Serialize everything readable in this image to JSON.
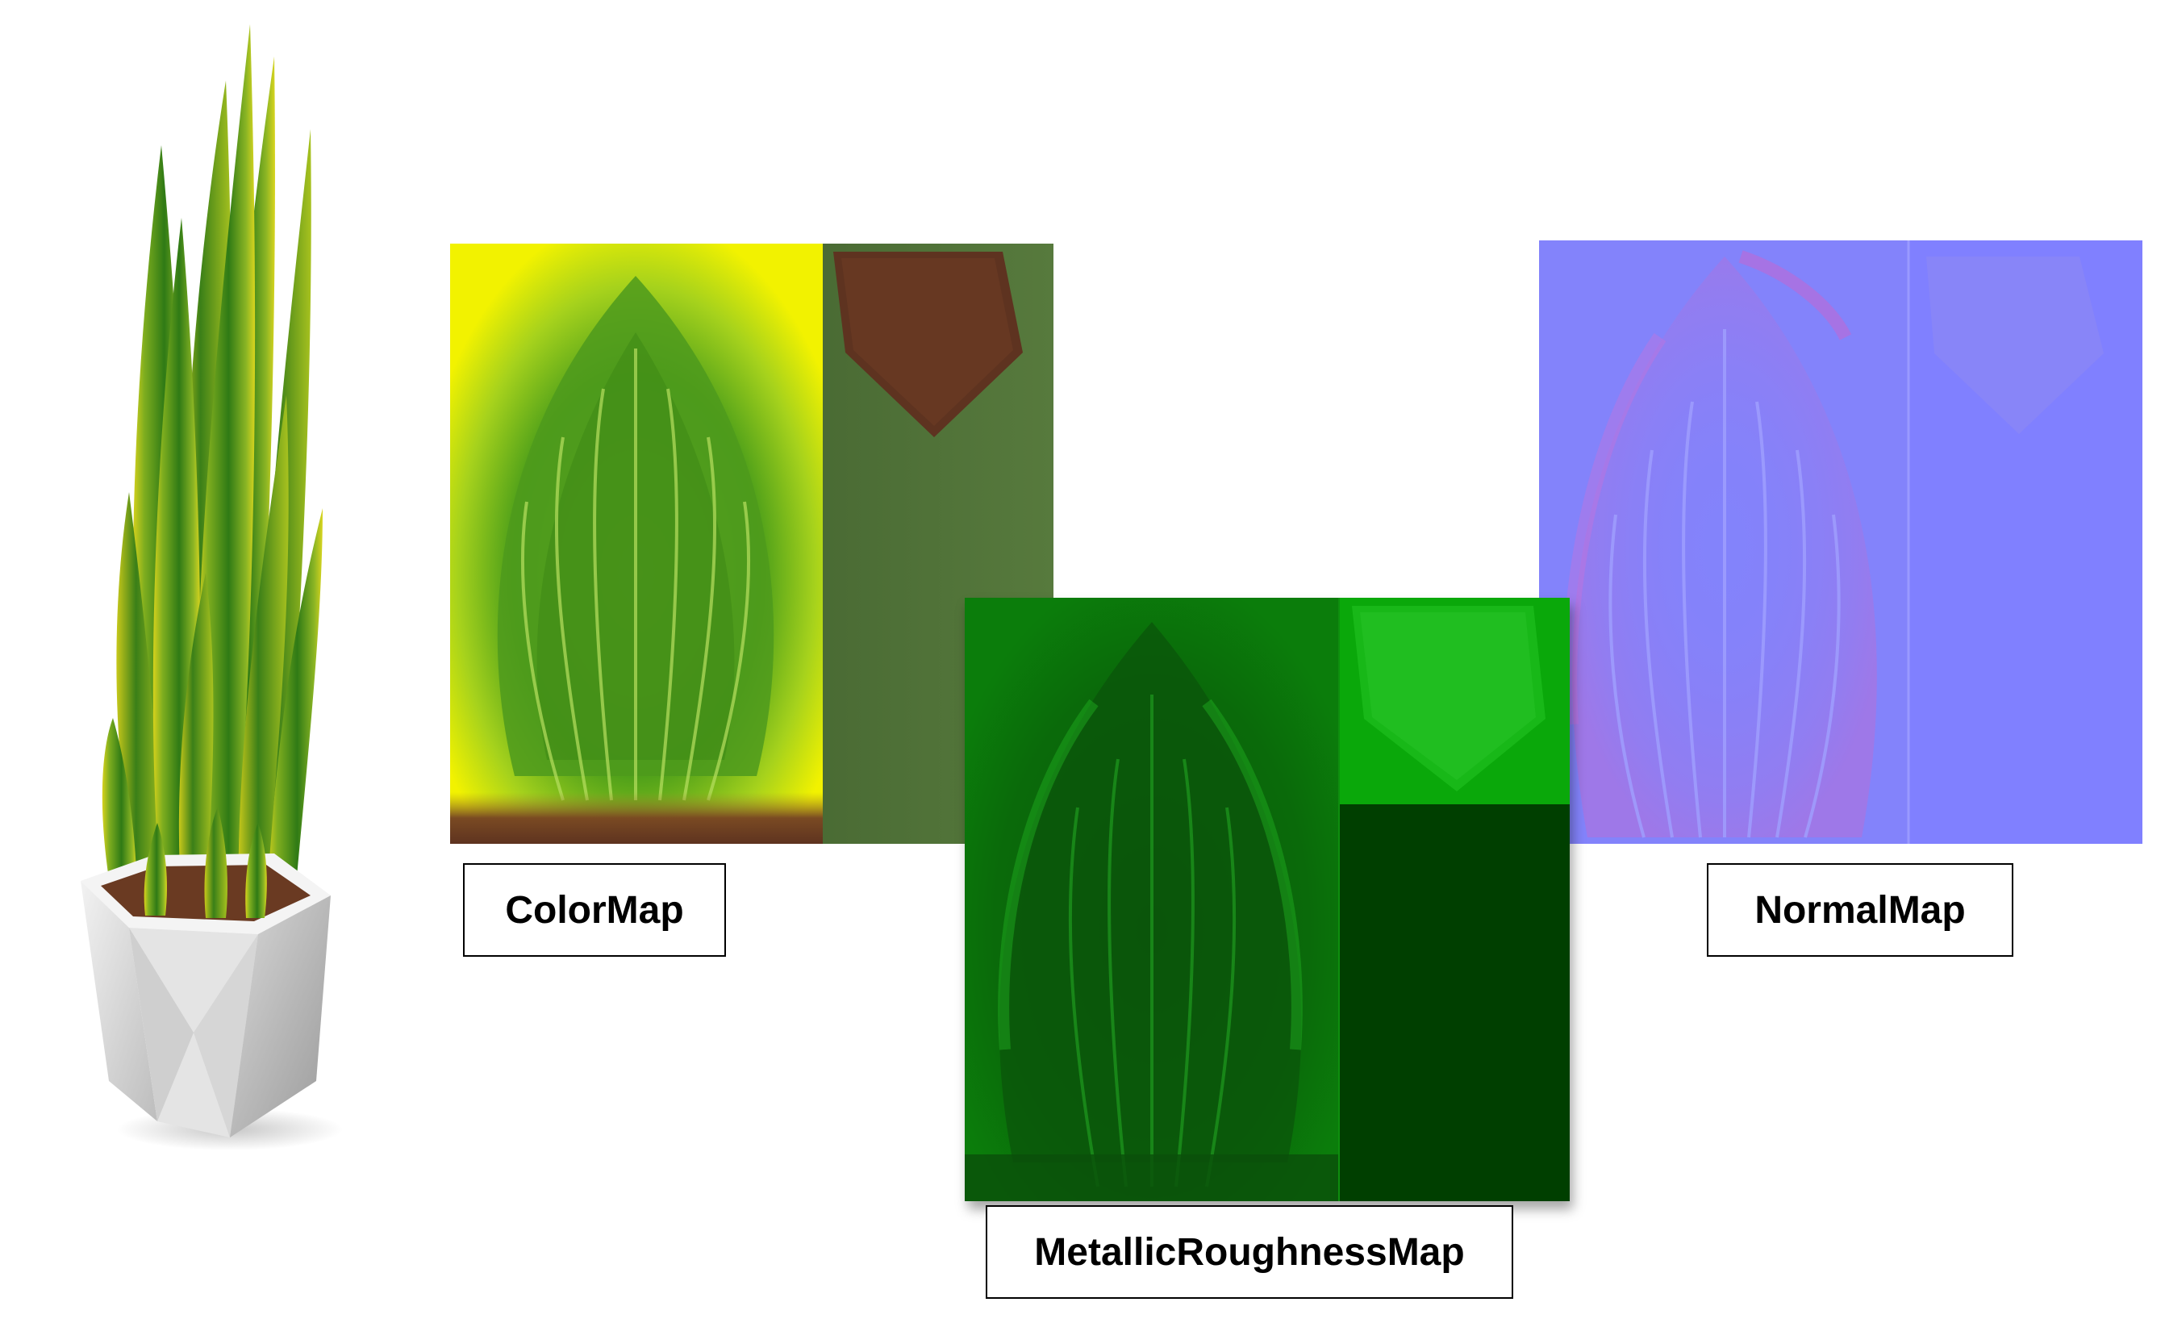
{
  "labels": {
    "color_map": "ColorMap",
    "metallic_roughness_map": "MetallicRoughnessMap",
    "normal_map": "NormalMap"
  },
  "illustration": {
    "subject": "potted-snake-plant",
    "pot_color": "#e6e6e6",
    "leaf_color": "#3f8a1c",
    "leaf_edge_color": "#d6d21e"
  },
  "textures": {
    "color_map": {
      "leaf_color": "#4b9e1a",
      "edge_color": "#f2f200",
      "soil_color": "#5e3320",
      "side_color": "#4a6b34"
    },
    "metallic_roughness_map": {
      "base_color": "#0b7d0b",
      "dark_color": "#003f00",
      "bright_color": "#22b222"
    },
    "normal_map": {
      "base_color": "#8080ff",
      "tint_color": "#c06ad0"
    }
  }
}
